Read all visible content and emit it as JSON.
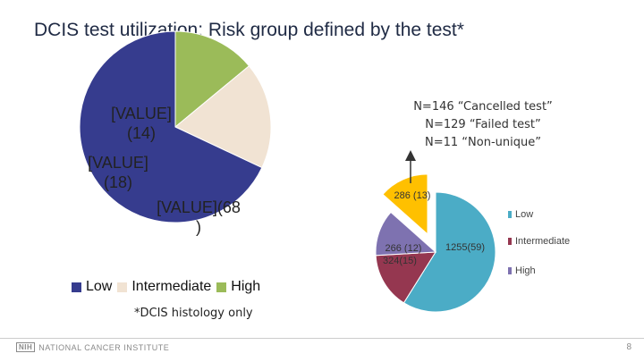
{
  "title": "DCIS test utilization: Risk group defined by the test*",
  "notes": [
    "N=146 “Cancelled test”",
    "N=129 “Failed test”",
    "N=11 “Non-unique”"
  ],
  "legend_left": [
    {
      "label": "Low",
      "color": "#363c8e"
    },
    {
      "label": "Intermediate",
      "color": "#f1e3d3"
    },
    {
      "label": "High",
      "color": "#9bbb59"
    }
  ],
  "legend_right": [
    {
      "label": "Low",
      "color": "#4bacc6"
    },
    {
      "label": "Intermediate",
      "color": "#953750"
    },
    {
      "label": "High",
      "color": "#7e72b0"
    }
  ],
  "footnote": "*DCIS histology only",
  "footer": {
    "logo_mark": "NIH",
    "logo_text": "NATIONAL CANCER INSTITUTE",
    "page_number": "8"
  },
  "chart_data": [
    {
      "type": "pie",
      "title": "",
      "slices": [
        {
          "name": "Low",
          "value": 68,
          "label": "[VALUE](68\n)",
          "color": "#363c8e"
        },
        {
          "name": "Intermediate",
          "value": 18,
          "label": "[VALUE]\n(18)",
          "color": "#f1e3d3"
        },
        {
          "name": "High",
          "value": 14,
          "label": "[VALUE]\n(14)",
          "color": "#9bbb59"
        }
      ],
      "legend": "bottom"
    },
    {
      "type": "pie",
      "title": "",
      "slices": [
        {
          "name": "Low",
          "value": 1255,
          "percent": 59,
          "label": "1255(59)",
          "color": "#4bacc6"
        },
        {
          "name": "Intermediate",
          "value": 324,
          "percent": 15,
          "label": "324(15)",
          "color": "#953750"
        },
        {
          "name": "High",
          "value": 266,
          "percent": 12,
          "label": "266 (12)",
          "color": "#7e72b0"
        },
        {
          "name": "",
          "value": 286,
          "percent": 13,
          "label": "286 (13)",
          "color": "#ffc000",
          "exploded": true
        }
      ],
      "legend": "right"
    }
  ]
}
